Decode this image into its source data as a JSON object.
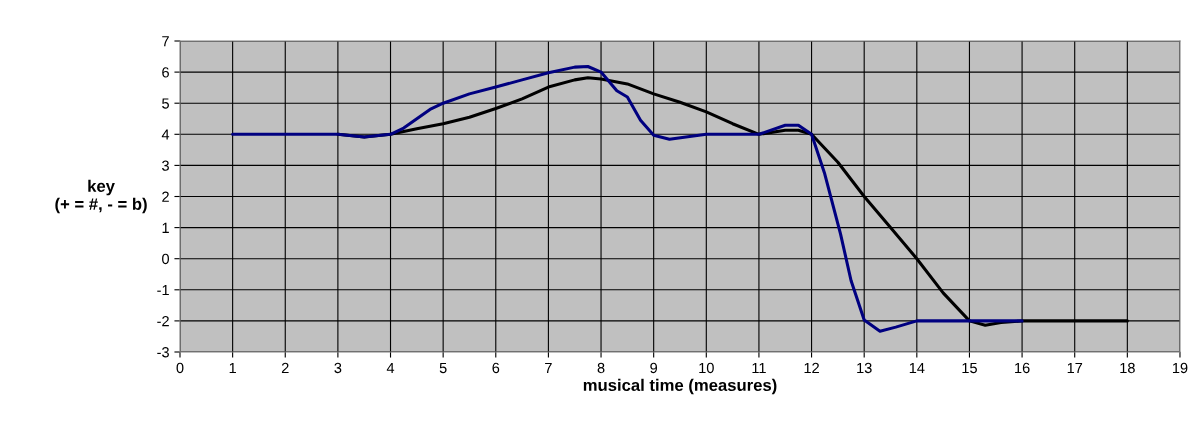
{
  "chart_data": {
    "type": "line",
    "xlabel": "musical time (measures)",
    "ylabel": "key\n(+ = #, - = b)",
    "xlim": [
      0,
      19
    ],
    "xticks": [
      0,
      1,
      2,
      3,
      4,
      5,
      6,
      7,
      8,
      9,
      10,
      11,
      12,
      13,
      14,
      15,
      16,
      17,
      18,
      19
    ],
    "ylim": [
      -3,
      7
    ],
    "yticks": [
      -3,
      -2,
      -1,
      0,
      1,
      2,
      3,
      4,
      5,
      6,
      7
    ],
    "grid": true,
    "marker": "none",
    "line_style": "solid",
    "series": [
      {
        "color": "#000000",
        "x": [
          3,
          3.5,
          4,
          4.5,
          5,
          5.5,
          6,
          6.5,
          7,
          7.5,
          7.75,
          8,
          8.5,
          9,
          9.5,
          10,
          10.5,
          11,
          11.5,
          11.75,
          12,
          12.5,
          13,
          13.5,
          14,
          14.5,
          15,
          15.3,
          15.6,
          16,
          17,
          18
        ],
        "values": [
          4,
          3.91,
          4.0,
          4.18,
          4.34,
          4.55,
          4.83,
          5.14,
          5.52,
          5.75,
          5.82,
          5.78,
          5.62,
          5.3,
          5.03,
          4.72,
          4.34,
          4,
          4.13,
          4.13,
          4,
          3.1,
          2,
          1,
          0,
          -1.1,
          -2,
          -2.14,
          -2.05,
          -2,
          -2,
          -2
        ]
      },
      {
        "color": "#000080",
        "x": [
          1,
          2,
          3,
          3.5,
          4,
          4.25,
          4.75,
          5,
          5.5,
          6,
          6.5,
          7,
          7.5,
          7.75,
          8,
          8.3,
          8.5,
          8.75,
          9,
          9.3,
          10,
          11,
          11.5,
          11.75,
          12,
          12.25,
          12.55,
          12.75,
          13,
          13.3,
          13.6,
          14,
          15,
          16
        ],
        "values": [
          4,
          4,
          4,
          3.91,
          4,
          4.2,
          4.8,
          5,
          5.3,
          5.52,
          5.75,
          5.98,
          6.16,
          6.18,
          6,
          5.4,
          5.2,
          4.45,
          3.97,
          3.84,
          4,
          4,
          4.29,
          4.29,
          4,
          2.73,
          0.8,
          -0.7,
          -1.97,
          -2.33,
          -2.2,
          -2,
          -2,
          -2
        ]
      }
    ]
  }
}
